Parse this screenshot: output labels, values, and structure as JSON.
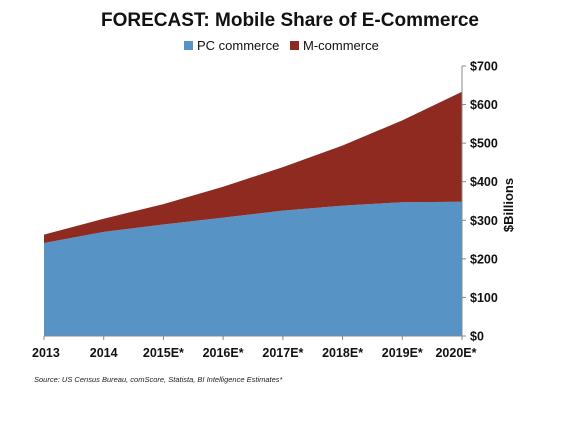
{
  "chart_data": {
    "type": "area",
    "title": "FORECAST: Mobile Share of E-Commerce",
    "xlabel": "",
    "ylabel": "$Billions",
    "categories": [
      "2013",
      "2014",
      "2015E*",
      "2016E*",
      "2017E*",
      "2018E*",
      "2019E*",
      "2020E*"
    ],
    "y_tick_labels": [
      "$0",
      "$100",
      "$200",
      "$300",
      "$400",
      "$500",
      "$600",
      "$700"
    ],
    "ylim": [
      0,
      700
    ],
    "stacked": true,
    "grid": false,
    "legend_position": "top",
    "series": [
      {
        "name": "PC commerce",
        "color": "#5893c6",
        "values": [
          241,
          270,
          289,
          307,
          325,
          338,
          347,
          348
        ]
      },
      {
        "name": "M-commerce",
        "color": "#8e2a1f",
        "values": [
          22,
          34,
          53,
          80,
          113,
          156,
          212,
          285
        ]
      }
    ],
    "source": "Source: US Census Bureau, comScore, Statista, BI Intelligence Estimates*"
  }
}
